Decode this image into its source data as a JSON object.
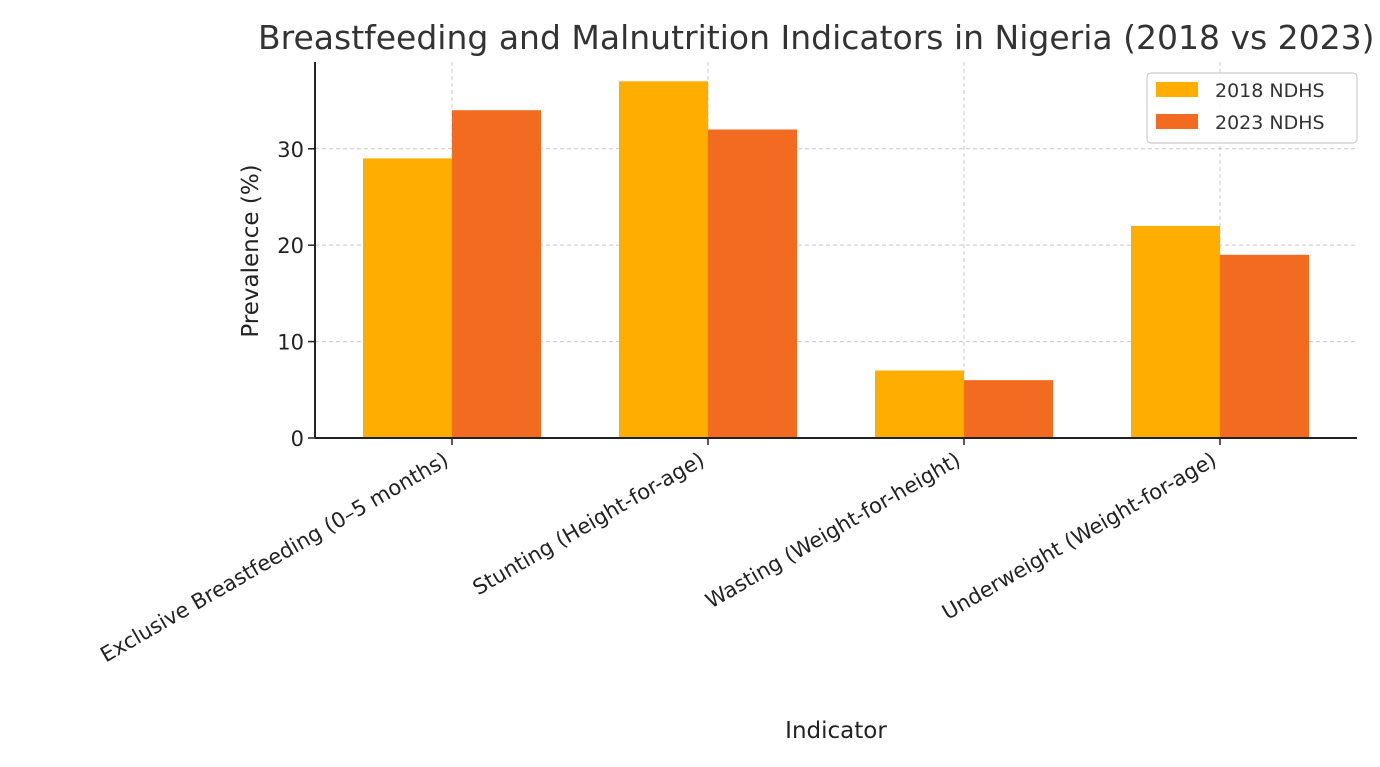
{
  "chart_data": {
    "type": "bar",
    "title": "Breastfeeding and Malnutrition Indicators in Nigeria (2018 vs 2023)",
    "xlabel": "Indicator",
    "ylabel": "Prevalence (%)",
    "categories": [
      "Exclusive Breastfeeding (0–5 months)",
      "Stunting (Height-for-age)",
      "Wasting (Weight-for-height)",
      "Underweight (Weight-for-age)"
    ],
    "series": [
      {
        "name": "2018 NDHS",
        "color": "#FFAE00",
        "values": [
          29,
          37,
          7,
          22
        ]
      },
      {
        "name": "2023 NDHS",
        "color": "#F26B21",
        "values": [
          34,
          32,
          6,
          19
        ]
      }
    ],
    "ylim": [
      0,
      39
    ],
    "yticks": [
      0,
      10,
      20,
      30
    ],
    "grid": true,
    "legend_position": "top-right"
  }
}
